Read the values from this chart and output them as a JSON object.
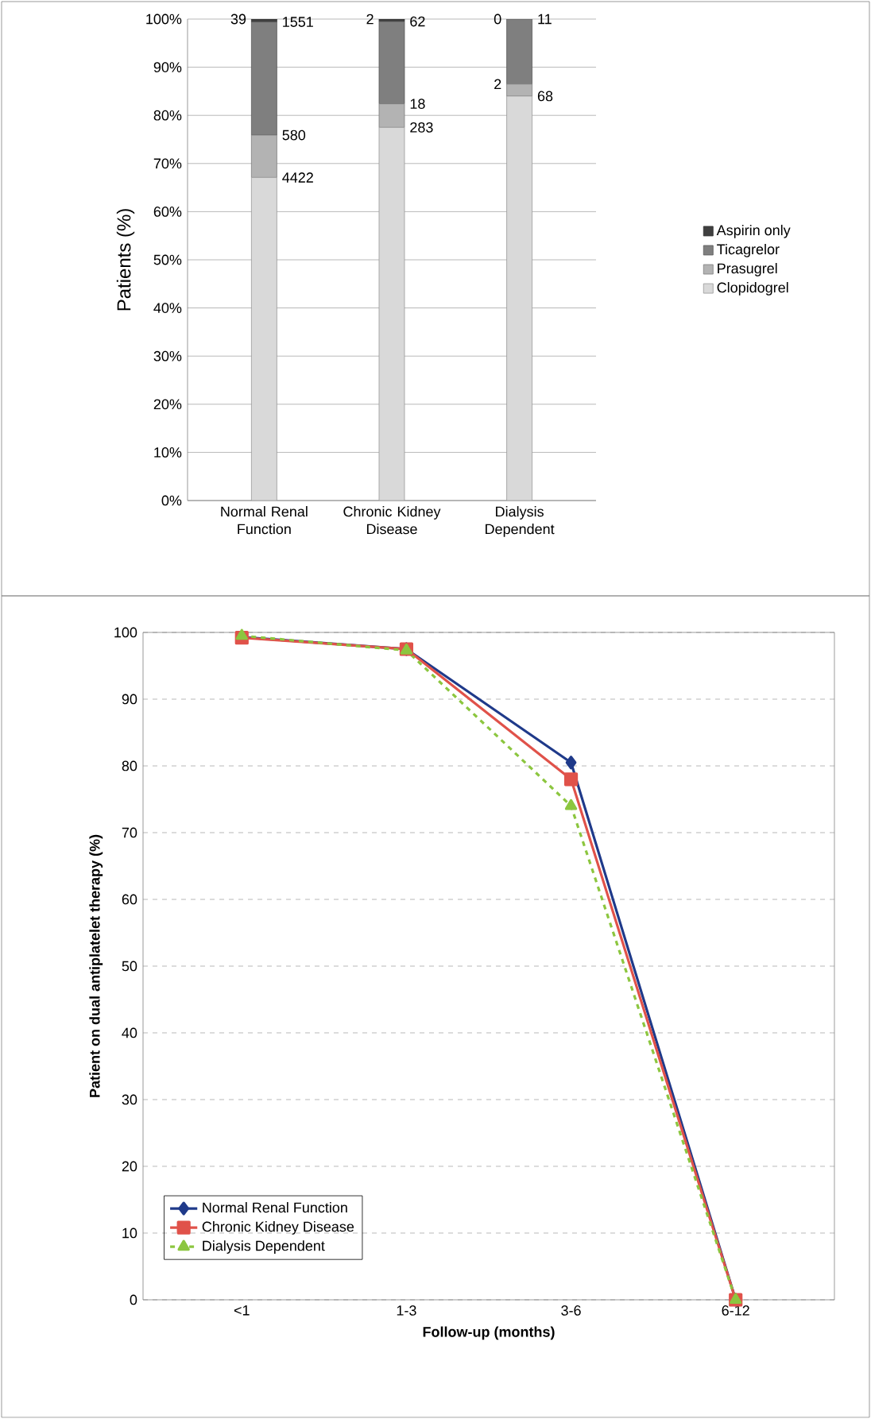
{
  "chart_data": [
    {
      "type": "bar",
      "stacked": true,
      "ylabel": "Patients (%)",
      "categories": [
        "Normal Renal Function",
        "Chronic Kidney Disease",
        "Dialysis Dependent"
      ],
      "ylim": [
        0,
        100
      ],
      "yticks": [
        {
          "value": 0,
          "label": "0%"
        },
        {
          "value": 10,
          "label": "10%"
        },
        {
          "value": 20,
          "label": "20%"
        },
        {
          "value": 30,
          "label": "30%"
        },
        {
          "value": 40,
          "label": "40%"
        },
        {
          "value": 50,
          "label": "50%"
        },
        {
          "value": 60,
          "label": "60%"
        },
        {
          "value": 70,
          "label": "70%"
        },
        {
          "value": 80,
          "label": "80%"
        },
        {
          "value": 90,
          "label": "90%"
        },
        {
          "value": 100,
          "label": "100%"
        }
      ],
      "grid": "y",
      "legend": "right",
      "series": [
        {
          "name": "Clopidogrel",
          "color": "#d9d9d9",
          "values": [
            67.1,
            77.5,
            84.0
          ]
        },
        {
          "name": "Prasugrel",
          "color": "#b3b3b3",
          "values": [
            8.8,
            4.9,
            2.5
          ]
        },
        {
          "name": "Ticagrelor",
          "color": "#7f7f7f",
          "values": [
            23.5,
            17.1,
            13.5
          ]
        },
        {
          "name": "Aspirin only",
          "color": "#404040",
          "values": [
            0.6,
            0.5,
            0
          ]
        }
      ],
      "annotations": [
        {
          "text": "4422",
          "x": "Normal Renal Function",
          "y": 67.1
        },
        {
          "text": "283",
          "x": "Chronic Kidney Disease",
          "y": 77.5
        },
        {
          "text": "68",
          "x": "Dialysis Dependent",
          "y": 84.0
        },
        {
          "text": "580",
          "x": "Normal Renal Function",
          "y": 75.9
        },
        {
          "text": "18",
          "x": "Chronic Kidney Disease",
          "y": 82.4
        },
        {
          "text": "2",
          "x": "Dialysis Dependent",
          "y": 86.5
        },
        {
          "text": "1551",
          "x": "Normal Renal Function",
          "y": 99.4
        },
        {
          "text": "62",
          "x": "Chronic Kidney Disease",
          "y": 99.5
        },
        {
          "text": "11",
          "x": "Dialysis Dependent",
          "y": 100
        },
        {
          "text": "39",
          "x": "Normal Renal Function",
          "y": 100
        },
        {
          "text": "2",
          "x": "Chronic Kidney Disease",
          "y": 100
        },
        {
          "text": "0",
          "x": "Dialysis Dependent",
          "y": 100
        }
      ]
    },
    {
      "type": "line",
      "xlabel": "Follow-up (months)",
      "ylabel": "Patient on dual antiplatelet therapy (%)",
      "categories": [
        "<1",
        "1-3",
        "3-6",
        "6-12"
      ],
      "ylim": [
        0,
        100
      ],
      "yticks": [
        0,
        10,
        20,
        30,
        40,
        50,
        60,
        70,
        80,
        90,
        100
      ],
      "grid": "y",
      "legend": "bottom left",
      "series": [
        {
          "name": "Normal Renal Function",
          "color": "#1f3a8a",
          "marker": "diamond",
          "line_style": "solid",
          "values": [
            99.3,
            97.5,
            80.5,
            0
          ]
        },
        {
          "name": "Chronic Kidney Disease",
          "color": "#e0524a",
          "marker": "square",
          "line_style": "solid",
          "values": [
            99.2,
            97.5,
            78,
            0
          ]
        },
        {
          "name": "Dialysis Dependent",
          "color": "#8cc63f",
          "marker": "triangle",
          "line_style": "dashed",
          "values": [
            99.5,
            97.3,
            74,
            0
          ]
        }
      ]
    }
  ]
}
